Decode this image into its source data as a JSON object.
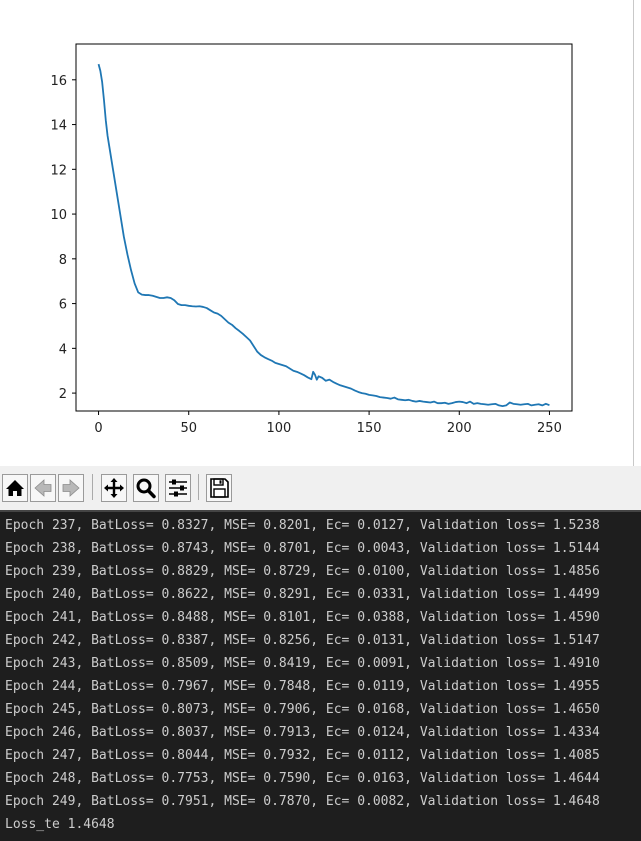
{
  "chart_data": {
    "type": "line",
    "title": "",
    "xlabel": "",
    "ylabel": "",
    "xlim": [
      -12.5,
      262.5
    ],
    "ylim": [
      1.2,
      17.6
    ],
    "xticks": [
      "0",
      "50",
      "100",
      "150",
      "200",
      "250"
    ],
    "yticks": [
      "2",
      "4",
      "6",
      "8",
      "10",
      "12",
      "14",
      "16"
    ],
    "grid": false,
    "series": [
      {
        "color": "#1f77b4",
        "x": [
          0,
          1,
          2,
          3,
          4,
          5,
          6,
          8,
          10,
          12,
          14,
          16,
          18,
          20,
          22,
          24,
          26,
          28,
          30,
          32,
          34,
          36,
          38,
          40,
          42,
          44,
          46,
          48,
          50,
          52,
          54,
          56,
          58,
          60,
          62,
          64,
          66,
          68,
          70,
          72,
          74,
          76,
          78,
          80,
          82,
          84,
          86,
          88,
          90,
          92,
          94,
          96,
          98,
          100,
          102,
          104,
          106,
          108,
          110,
          112,
          114,
          116,
          118,
          119,
          120,
          121,
          122,
          124,
          126,
          128,
          130,
          132,
          134,
          136,
          138,
          140,
          142,
          144,
          146,
          148,
          150,
          152,
          154,
          156,
          158,
          160,
          162,
          164,
          166,
          168,
          170,
          172,
          174,
          176,
          178,
          180,
          182,
          184,
          186,
          188,
          190,
          192,
          194,
          196,
          198,
          200,
          202,
          204,
          206,
          208,
          210,
          212,
          214,
          216,
          218,
          220,
          222,
          224,
          226,
          228,
          230,
          232,
          234,
          236,
          238,
          240,
          242,
          244,
          246,
          248,
          250
        ],
        "y": [
          16.7,
          16.4,
          15.9,
          15.1,
          14.2,
          13.5,
          13.0,
          12.0,
          11.0,
          10.0,
          9.0,
          8.2,
          7.5,
          6.9,
          6.5,
          6.4,
          6.38,
          6.38,
          6.35,
          6.3,
          6.25,
          6.25,
          6.28,
          6.25,
          6.15,
          5.98,
          5.93,
          5.93,
          5.9,
          5.88,
          5.87,
          5.88,
          5.85,
          5.8,
          5.7,
          5.6,
          5.55,
          5.45,
          5.3,
          5.15,
          5.05,
          4.9,
          4.78,
          4.65,
          4.5,
          4.35,
          4.1,
          3.85,
          3.7,
          3.6,
          3.52,
          3.45,
          3.35,
          3.3,
          3.25,
          3.2,
          3.1,
          3.0,
          2.95,
          2.88,
          2.8,
          2.7,
          2.62,
          2.95,
          2.82,
          2.6,
          2.75,
          2.68,
          2.55,
          2.6,
          2.5,
          2.42,
          2.35,
          2.3,
          2.25,
          2.2,
          2.12,
          2.05,
          2.0,
          1.97,
          1.92,
          1.9,
          1.87,
          1.82,
          1.8,
          1.78,
          1.75,
          1.8,
          1.72,
          1.7,
          1.68,
          1.7,
          1.65,
          1.62,
          1.65,
          1.62,
          1.6,
          1.58,
          1.62,
          1.55,
          1.55,
          1.57,
          1.52,
          1.55,
          1.6,
          1.62,
          1.6,
          1.55,
          1.62,
          1.52,
          1.55,
          1.52,
          1.5,
          1.48,
          1.5,
          1.52,
          1.45,
          1.42,
          1.45,
          1.58,
          1.52,
          1.5,
          1.48,
          1.5,
          1.52,
          1.45,
          1.48,
          1.5,
          1.45,
          1.52,
          1.46
        ]
      }
    ]
  },
  "toolbar": {
    "buttons": [
      {
        "name": "home-button",
        "icon": "home-icon"
      },
      {
        "name": "back-button",
        "icon": "back-arrow-icon"
      },
      {
        "name": "forward-button",
        "icon": "forward-arrow-icon"
      },
      {
        "name": "pan-button",
        "icon": "move-icon"
      },
      {
        "name": "zoom-button",
        "icon": "magnifier-icon"
      },
      {
        "name": "configure-subplots-button",
        "icon": "sliders-icon"
      },
      {
        "name": "save-button",
        "icon": "floppy-disk-icon"
      }
    ]
  },
  "console": {
    "lines": [
      "Epoch 237, BatLoss= 0.8327, MSE= 0.8201, Ec= 0.0127, Validation loss= 1.5238",
      "Epoch 238, BatLoss= 0.8743, MSE= 0.8701, Ec= 0.0043, Validation loss= 1.5144",
      "Epoch 239, BatLoss= 0.8829, MSE= 0.8729, Ec= 0.0100, Validation loss= 1.4856",
      "Epoch 240, BatLoss= 0.8622, MSE= 0.8291, Ec= 0.0331, Validation loss= 1.4499",
      "Epoch 241, BatLoss= 0.8488, MSE= 0.8101, Ec= 0.0388, Validation loss= 1.4590",
      "Epoch 242, BatLoss= 0.8387, MSE= 0.8256, Ec= 0.0131, Validation loss= 1.5147",
      "Epoch 243, BatLoss= 0.8509, MSE= 0.8419, Ec= 0.0091, Validation loss= 1.4910",
      "Epoch 244, BatLoss= 0.7967, MSE= 0.7848, Ec= 0.0119, Validation loss= 1.4955",
      "Epoch 245, BatLoss= 0.8073, MSE= 0.7906, Ec= 0.0168, Validation loss= 1.4650",
      "Epoch 246, BatLoss= 0.8037, MSE= 0.7913, Ec= 0.0124, Validation loss= 1.4334",
      "Epoch 247, BatLoss= 0.8044, MSE= 0.7932, Ec= 0.0112, Validation loss= 1.4085",
      "Epoch 248, BatLoss= 0.7753, MSE= 0.7590, Ec= 0.0163, Validation loss= 1.4644",
      "Epoch 249, BatLoss= 0.7951, MSE= 0.7870, Ec= 0.0082, Validation loss= 1.4648",
      "Loss_te 1.4648"
    ]
  }
}
